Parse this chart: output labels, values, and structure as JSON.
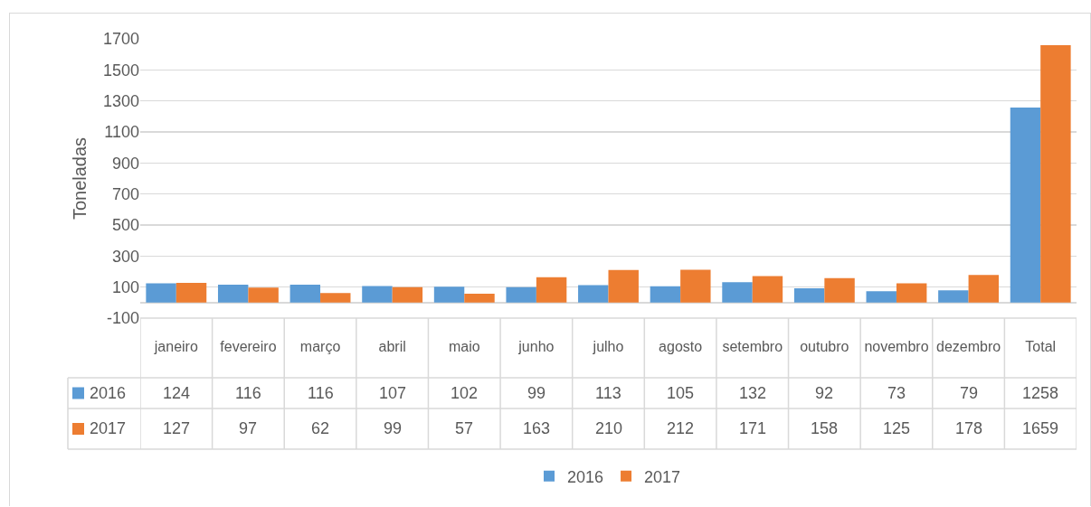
{
  "chart_data": {
    "type": "bar",
    "ylabel": "Toneladas",
    "categories": [
      "janeiro",
      "fevereiro",
      "março",
      "abril",
      "maio",
      "junho",
      "julho",
      "agosto",
      "setembro",
      "outubro",
      "novembro",
      "dezembro",
      "Total"
    ],
    "series": [
      {
        "name": "2016",
        "color": "#5b9bd5",
        "values": [
          124,
          116,
          116,
          107,
          102,
          99,
          113,
          105,
          132,
          92,
          73,
          79,
          1258
        ]
      },
      {
        "name": "2017",
        "color": "#ed7d31",
        "values": [
          127,
          97,
          62,
          99,
          57,
          163,
          210,
          212,
          171,
          158,
          125,
          178,
          1659
        ]
      }
    ],
    "ylim": [
      -100,
      1700
    ],
    "yticks": [
      -100,
      100,
      300,
      500,
      700,
      900,
      1100,
      1300,
      1500,
      1700
    ],
    "grid": "y",
    "legend": "bottom",
    "data_labels": true
  }
}
